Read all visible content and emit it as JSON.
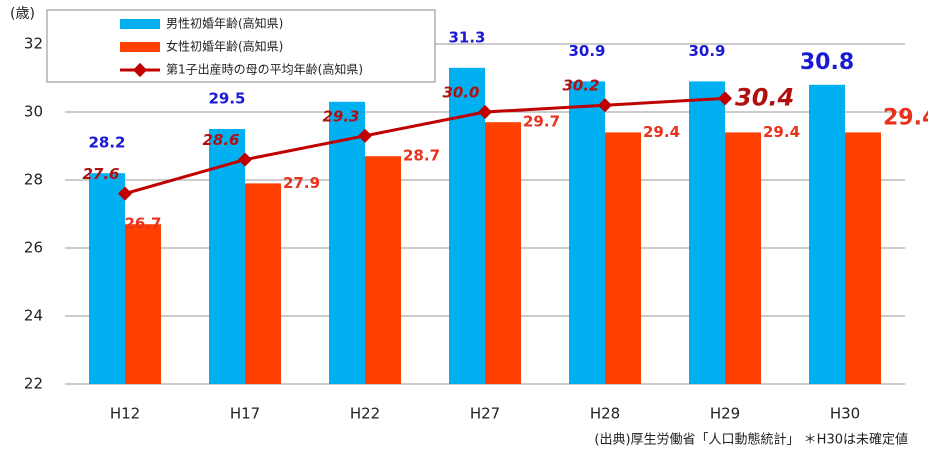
{
  "chart_data": {
    "type": "bar_line",
    "y_label": "(歳)",
    "note": "(出典)厚生労働省「人口動態統計」 ＊H30は未確定値",
    "categories": [
      "H12",
      "H17",
      "H22",
      "H27",
      "H28",
      "H29",
      "H30"
    ],
    "series": [
      {
        "name": "男性初婚年齢(高知県)",
        "color": "#00b0f0",
        "type": "bar",
        "values": [
          28.2,
          29.5,
          30.3,
          31.3,
          30.9,
          30.9,
          30.8
        ]
      },
      {
        "name": "女性初婚年齢(高知県)",
        "color": "#ff4000",
        "type": "bar",
        "values": [
          26.7,
          27.9,
          28.7,
          29.7,
          29.4,
          29.4,
          29.4
        ]
      },
      {
        "name": "第1子出産時の母の平均年齢(高知県)",
        "color": "#c00000",
        "type": "line",
        "values": [
          27.6,
          28.6,
          29.3,
          30.0,
          30.2,
          30.4,
          null
        ],
        "value_labels": [
          "27.6",
          "28.6",
          "29.3",
          "30.0",
          "30.2",
          "30.4",
          null
        ]
      }
    ],
    "ylim": [
      22,
      32
    ],
    "yticks": [
      22,
      24,
      26,
      28,
      30,
      32
    ],
    "grid": true,
    "legend": "top-left"
  }
}
